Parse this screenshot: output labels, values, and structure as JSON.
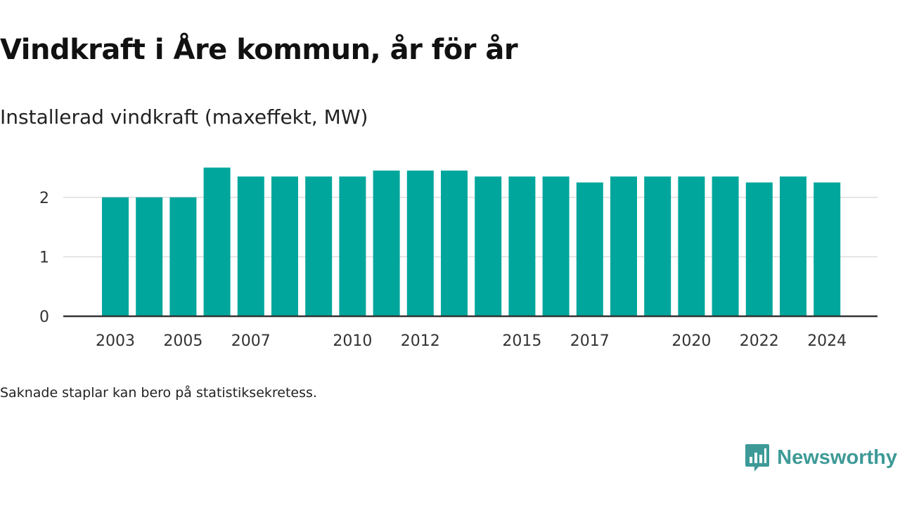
{
  "page": {
    "title": "Vindkraft i Åre kommun, år för år",
    "subtitle": "Installerad vindkraft (maxeffekt, MW)",
    "note": "Saknade staplar kan bero på statistiksekretess.",
    "brand": "Newsworthy"
  },
  "colors": {
    "bar": "#00a69c",
    "grid": "#dddddd",
    "axis": "#333333",
    "brand": "#3d9a97"
  },
  "chart_data": {
    "type": "bar",
    "title": "Vindkraft i Åre kommun, år för år",
    "subtitle": "Installerad vindkraft (maxeffekt, MW)",
    "categories": [
      "2003",
      "2004",
      "2005",
      "2006",
      "2007",
      "2008",
      "2009",
      "2010",
      "2011",
      "2012",
      "2013",
      "2014",
      "2015",
      "2016",
      "2017",
      "2018",
      "2019",
      "2020",
      "2021",
      "2022",
      "2023",
      "2024"
    ],
    "values": [
      2.0,
      2.0,
      2.0,
      2.5,
      2.35,
      2.35,
      2.35,
      2.35,
      2.45,
      2.45,
      2.45,
      2.35,
      2.35,
      2.35,
      2.25,
      2.35,
      2.35,
      2.35,
      2.35,
      2.25,
      2.35,
      2.25
    ],
    "x_tick_labels": [
      "2003",
      "2005",
      "2007",
      "2010",
      "2012",
      "2015",
      "2017",
      "2020",
      "2022",
      "2024"
    ],
    "y_ticks": [
      0,
      1,
      2
    ],
    "ylim": [
      0,
      2.6
    ],
    "xlabel": "",
    "ylabel": "",
    "grid": true,
    "legend": "none"
  }
}
